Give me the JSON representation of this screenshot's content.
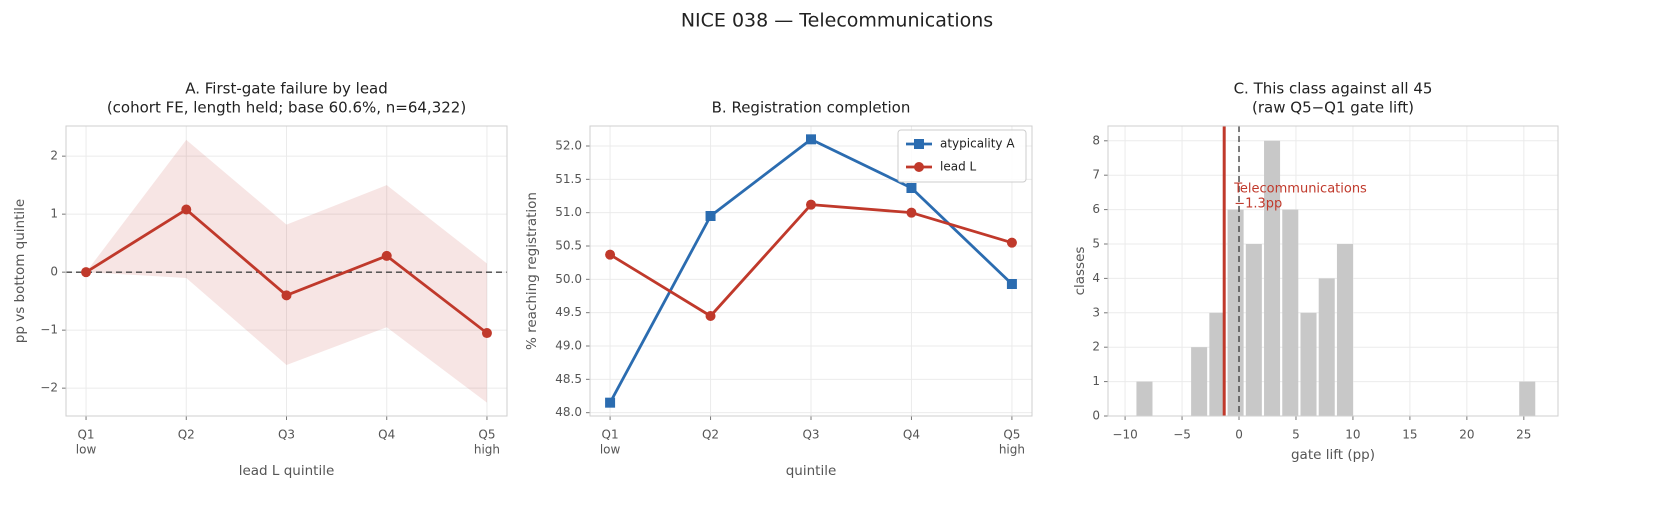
{
  "title": "NICE 038 — Telecommunications",
  "chart_data": [
    {
      "type": "line",
      "title": [
        "A. First-gate failure by lead",
        "(cohort FE, length held; base 60.6%, n=64,322)"
      ],
      "categories": [
        "Q1",
        "Q2",
        "Q3",
        "Q4",
        "Q5"
      ],
      "category_sublabels": [
        "low",
        null,
        null,
        null,
        "high"
      ],
      "values": [
        0,
        1.08,
        -0.4,
        0.28,
        -1.05
      ],
      "color": "#c0392b",
      "band": {
        "lower": [
          0,
          -0.1,
          -1.6,
          -0.95,
          -2.25
        ],
        "upper": [
          0,
          2.28,
          0.82,
          1.5,
          0.15
        ],
        "color": "#c0392b"
      },
      "hline": 0,
      "xlabel": "lead L quintile",
      "ylabel": "pp vs bottom quintile",
      "ylim": [
        -2.48,
        2.52
      ],
      "yticks": [
        {
          "value": -2,
          "label": "−2"
        },
        {
          "value": -1,
          "label": "−1"
        },
        0,
        1,
        2
      ],
      "grid": true
    },
    {
      "type": "line",
      "title": [
        "B. Registration completion"
      ],
      "categories": [
        "Q1",
        "Q2",
        "Q3",
        "Q4",
        "Q5"
      ],
      "category_sublabels": [
        "low",
        null,
        null,
        null,
        "high"
      ],
      "series": [
        {
          "name": "atypicality A",
          "color": "#2b6cb0",
          "marker": "square",
          "values": [
            48.15,
            50.95,
            52.1,
            51.37,
            49.93
          ]
        },
        {
          "name": "lead L",
          "color": "#c0392b",
          "marker": "circle",
          "values": [
            50.37,
            49.45,
            51.12,
            51.0,
            50.55
          ]
        }
      ],
      "xlabel": "quintile",
      "ylabel": "% reaching registration",
      "ylim": [
        47.95,
        52.3
      ],
      "yticks": [
        {
          "value": 48,
          "label": "48.0"
        },
        48.5,
        {
          "value": 49,
          "label": "49.0"
        },
        49.5,
        {
          "value": 50,
          "label": "50.0"
        },
        50.5,
        {
          "value": 51,
          "label": "51.0"
        },
        51.5,
        {
          "value": 52,
          "label": "52.0"
        }
      ],
      "legend": "upper right",
      "grid": true
    },
    {
      "type": "histogram",
      "title": [
        "C. This class against all 45",
        "(raw Q5−Q1 gate lift)"
      ],
      "bins": [
        -9.1,
        -7.5,
        -5.9,
        -4.3,
        -2.7,
        -1.1,
        0.5,
        2.1,
        3.7,
        5.3,
        6.9,
        8.5,
        10.1,
        11.7,
        13.3,
        14.9,
        16.5,
        18.1,
        19.7,
        21.3,
        22.9,
        24.5,
        26.1
      ],
      "counts": [
        1,
        0,
        0,
        2,
        3,
        6,
        5,
        8,
        6,
        3,
        4,
        5,
        0,
        0,
        0,
        0,
        0,
        0,
        0,
        0,
        0,
        1
      ],
      "color": "#c8c8c8",
      "marker_line": {
        "value": -1.3,
        "color": "#c0392b",
        "label": [
          "Telecommunications",
          "−1.3pp"
        ]
      },
      "ref_line": 0,
      "xlabel": "gate lift (pp)",
      "ylabel": "classes",
      "xlim": [
        -11.5,
        28.0
      ],
      "xticks": [
        {
          "value": -10,
          "label": "−10"
        },
        {
          "value": -5,
          "label": "−5"
        },
        0,
        5,
        10,
        15,
        20,
        25
      ],
      "ylim": [
        0,
        8.43
      ],
      "yticks": [
        0,
        1,
        2,
        3,
        4,
        5,
        6,
        7,
        8
      ],
      "grid": true
    }
  ]
}
